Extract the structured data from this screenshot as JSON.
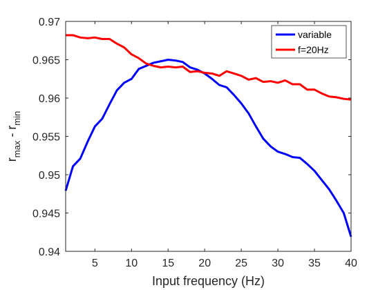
{
  "chart_data": {
    "type": "line",
    "xlabel": "Input frequency (Hz)",
    "ylabel": {
      "r1": "r",
      "sub1": "max",
      "mid": " - r",
      "sub2": "min"
    },
    "xlim": [
      1,
      40
    ],
    "ylim": [
      0.94,
      0.97
    ],
    "xticks": [
      5,
      10,
      15,
      20,
      25,
      30,
      35,
      40
    ],
    "yticks": [
      0.94,
      0.945,
      0.95,
      0.955,
      0.96,
      0.965,
      0.97
    ],
    "xtick_labels": [
      "5",
      "10",
      "15",
      "20",
      "25",
      "30",
      "35",
      "40"
    ],
    "ytick_labels": [
      "0.94",
      "0.945",
      "0.95",
      "0.955",
      "0.96",
      "0.965",
      "0.97"
    ],
    "grid": false,
    "box": true,
    "legend_position": "top-right",
    "x": [
      1,
      2,
      3,
      4,
      5,
      6,
      7,
      8,
      9,
      10,
      11,
      12,
      13,
      14,
      15,
      16,
      17,
      18,
      19,
      20,
      21,
      22,
      23,
      24,
      25,
      26,
      27,
      28,
      29,
      30,
      31,
      32,
      33,
      34,
      35,
      36,
      37,
      38,
      39,
      40
    ],
    "series": [
      {
        "name": "variable",
        "color": "#0000ff",
        "values": [
          0.9479,
          0.9511,
          0.9521,
          0.9543,
          0.9563,
          0.9573,
          0.9592,
          0.961,
          0.962,
          0.9625,
          0.9638,
          0.9642,
          0.9646,
          0.9648,
          0.965,
          0.9649,
          0.9647,
          0.964,
          0.9637,
          0.9632,
          0.9625,
          0.9617,
          0.9614,
          0.9604,
          0.9593,
          0.958,
          0.9563,
          0.9547,
          0.9537,
          0.953,
          0.9527,
          0.9523,
          0.9522,
          0.9514,
          0.9505,
          0.9493,
          0.9481,
          0.9466,
          0.945,
          0.9419
        ]
      },
      {
        "name": "f=20Hz",
        "color": "#ff0000",
        "values": [
          0.9682,
          0.9682,
          0.9679,
          0.9678,
          0.9679,
          0.9677,
          0.9677,
          0.9671,
          0.9666,
          0.9657,
          0.9652,
          0.9645,
          0.9642,
          0.964,
          0.9641,
          0.964,
          0.9641,
          0.9634,
          0.9635,
          0.9633,
          0.9632,
          0.9629,
          0.9635,
          0.9632,
          0.9629,
          0.9624,
          0.9626,
          0.9621,
          0.9622,
          0.962,
          0.9623,
          0.9618,
          0.9618,
          0.9611,
          0.9611,
          0.9606,
          0.9602,
          0.9601,
          0.9599,
          0.9598
        ]
      }
    ]
  }
}
